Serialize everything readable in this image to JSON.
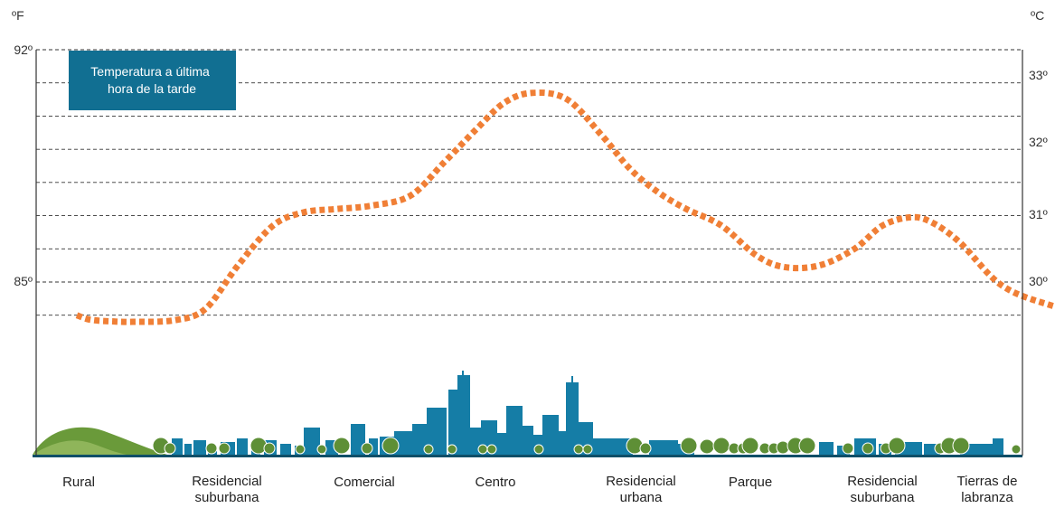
{
  "chart_data": {
    "type": "line",
    "title": "Temperatura a última hora de la tarde",
    "left_axis": {
      "unit": "ºF",
      "ylim": [
        85,
        92
      ],
      "ticks": [
        {
          "value": 92,
          "label": "92º"
        },
        {
          "value": 85,
          "label": "85º"
        }
      ]
    },
    "right_axis": {
      "unit": "ºC",
      "ticks": [
        {
          "value": 33,
          "label": "33º"
        },
        {
          "value": 32,
          "label": "32º"
        },
        {
          "value": 31,
          "label": "31º"
        },
        {
          "value": 30,
          "label": "30º"
        }
      ]
    },
    "grid": true,
    "grid_lines_f": [
      92,
      91,
      90,
      89,
      88,
      87,
      86,
      85,
      84
    ],
    "categories": [
      "Rural",
      "Residencial suburbana",
      "Comercial",
      "Centro",
      "Residencial urbana",
      "Parque",
      "Residencial suburbana",
      "Tierras de labranza"
    ],
    "category_lines": [
      [
        "Rural"
      ],
      [
        "Residencial",
        "suburbana"
      ],
      [
        "Comercial"
      ],
      [
        "Centro"
      ],
      [
        "Residencial",
        "urbana"
      ],
      [
        "Parque"
      ],
      [
        "Residencial",
        "suburbana"
      ],
      [
        "Tierras de",
        "labranza"
      ]
    ],
    "series": [
      {
        "color": "#f07f36",
        "style": "dotted",
        "x": [
          0,
          0.06,
          0.12,
          0.22,
          0.4,
          0.7,
          0.92,
          1.15,
          1.4,
          1.62,
          1.85,
          2.1,
          2.38,
          2.62,
          2.85,
          3.05,
          3.25,
          3.5,
          3.75,
          3.95,
          4.15,
          4.35,
          4.6,
          4.85,
          5.05,
          5.3,
          5.55,
          5.75,
          5.95,
          6.1,
          6.3,
          6.6,
          6.95,
          7.2,
          7.5
        ],
        "y": [
          84.0,
          83.9,
          83.85,
          83.82,
          83.8,
          83.85,
          84.2,
          85.5,
          86.7,
          87.1,
          87.2,
          87.3,
          87.6,
          88.6,
          89.6,
          90.4,
          90.7,
          90.5,
          89.4,
          88.4,
          87.7,
          87.2,
          86.7,
          85.8,
          85.45,
          85.5,
          86.0,
          86.7,
          86.95,
          86.8,
          86.2,
          84.9,
          84.3,
          84.1,
          84.0
        ]
      }
    ]
  },
  "colors": {
    "line": "#f07f36",
    "title_box": "#116f92",
    "buildings": "#157da6",
    "trees": "#5e8f36",
    "grid": "#333333",
    "ground": "#0f4f68",
    "hills": "#6a9a3a"
  }
}
